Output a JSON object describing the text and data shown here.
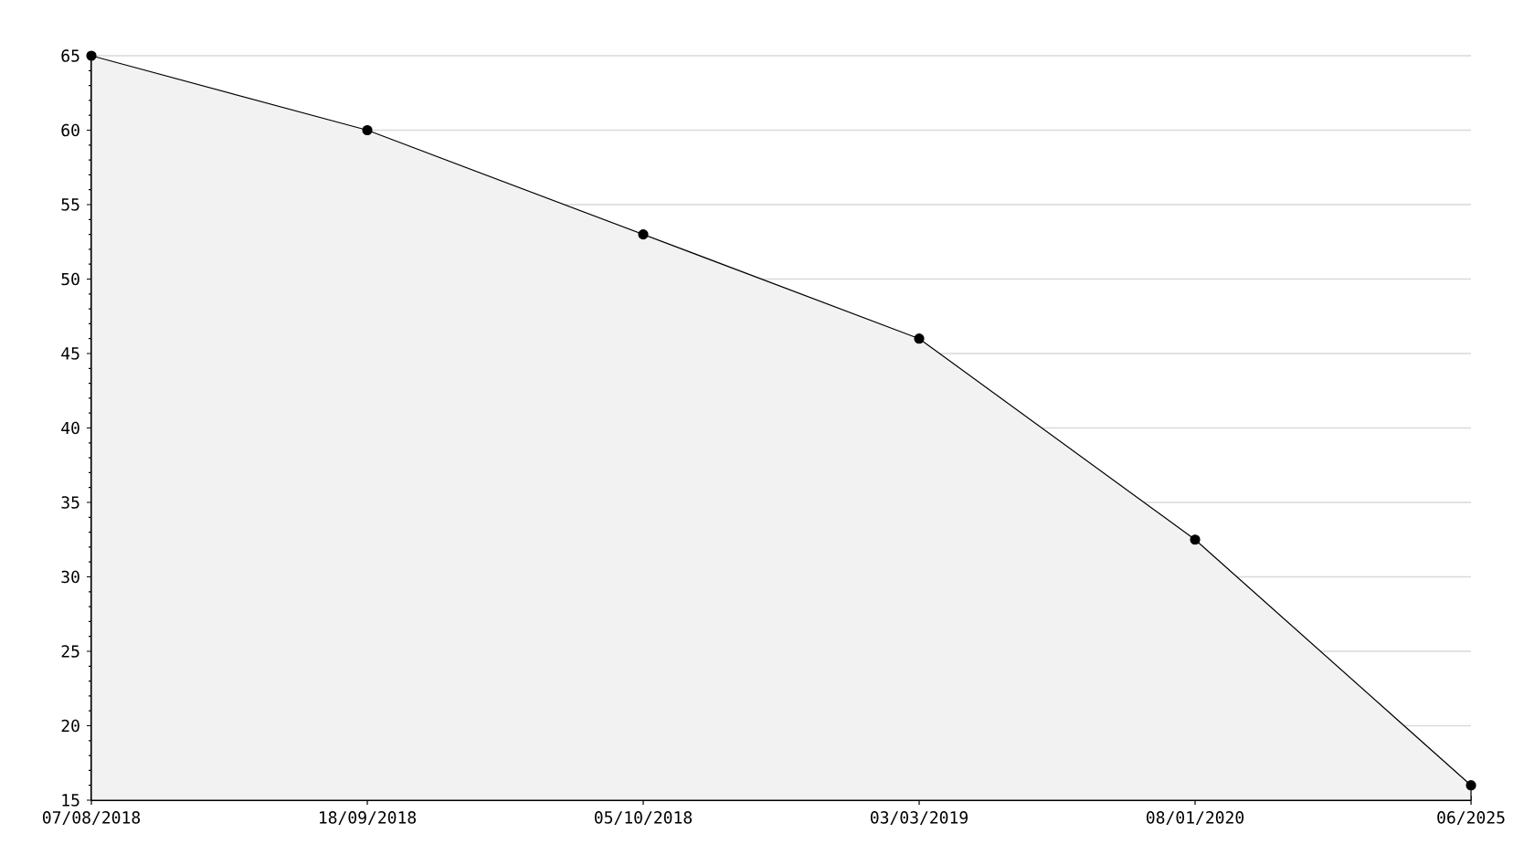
{
  "chart_data": {
    "type": "area",
    "categories": [
      "07/08/2018",
      "18/09/2018",
      "05/10/2018",
      "03/03/2019",
      "08/01/2020",
      "06/2025"
    ],
    "values": [
      65,
      60,
      53,
      46,
      32.5,
      16
    ],
    "color": "#f2f2f2",
    "ylim": [
      15,
      65
    ],
    "yticks": [
      15,
      20,
      25,
      30,
      35,
      40,
      45,
      50,
      55,
      60,
      65
    ],
    "grid": "y",
    "marker": "circle",
    "line_style": "solid"
  }
}
